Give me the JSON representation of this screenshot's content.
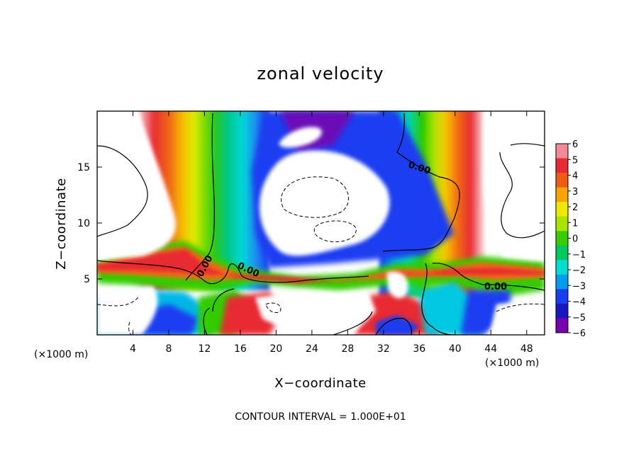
{
  "chart_data": {
    "type": "heatmap",
    "title": "zonal velocity",
    "xlabel": "X−coordinate",
    "ylabel": "Z−coordinate",
    "x_unit": "(×1000 m)",
    "x_unit_right": "(×1000 m)",
    "xlim": [
      0,
      50
    ],
    "ylim": [
      0,
      20
    ],
    "x_ticks": [
      "4",
      "8",
      "12",
      "16",
      "20",
      "24",
      "28",
      "32",
      "36",
      "40",
      "44",
      "48"
    ],
    "y_ticks": [
      "5",
      "10",
      "15"
    ],
    "colorbar": {
      "range": [
        -6,
        6
      ],
      "labels": [
        "6",
        "5",
        "4",
        "3",
        "2",
        "1",
        "0",
        "−1",
        "−2",
        "−3",
        "−4",
        "−5",
        "−6"
      ],
      "colors": [
        "#f28a96",
        "#e82a32",
        "#f05a14",
        "#f7a400",
        "#f0e800",
        "#a8e400",
        "#36cc00",
        "#00c860",
        "#00dcd0",
        "#009cf0",
        "#1840f0",
        "#1818c0",
        "#7800b0"
      ]
    },
    "contour_labels": [
      "0.00",
      "0.00",
      "0.00",
      "0.00"
    ],
    "footer": "CONTOUR INTERVAL = 1.000E+01"
  }
}
